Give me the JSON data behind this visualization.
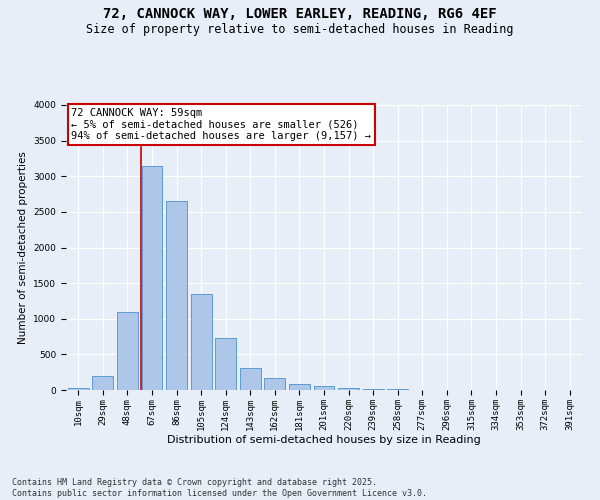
{
  "title": "72, CANNOCK WAY, LOWER EARLEY, READING, RG6 4EF",
  "subtitle": "Size of property relative to semi-detached houses in Reading",
  "xlabel": "Distribution of semi-detached houses by size in Reading",
  "ylabel": "Number of semi-detached properties",
  "categories": [
    "10sqm",
    "29sqm",
    "48sqm",
    "67sqm",
    "86sqm",
    "105sqm",
    "124sqm",
    "143sqm",
    "162sqm",
    "181sqm",
    "201sqm",
    "220sqm",
    "239sqm",
    "258sqm",
    "277sqm",
    "296sqm",
    "315sqm",
    "334sqm",
    "353sqm",
    "372sqm",
    "391sqm"
  ],
  "values": [
    30,
    190,
    1090,
    3150,
    2650,
    1350,
    730,
    310,
    165,
    85,
    50,
    35,
    20,
    10,
    5,
    3,
    2,
    1,
    1,
    0,
    0
  ],
  "bar_color": "#aec6e8",
  "bar_edge_color": "#5b9bd5",
  "bg_color": "#e8eef7",
  "grid_color": "#ffffff",
  "vline_x": 2.55,
  "vline_color": "#cc0000",
  "annotation_text": "72 CANNOCK WAY: 59sqm\n← 5% of semi-detached houses are smaller (526)\n94% of semi-detached houses are larger (9,157) →",
  "annotation_box_color": "#ffffff",
  "annotation_box_edge": "#cc0000",
  "footer": "Contains HM Land Registry data © Crown copyright and database right 2025.\nContains public sector information licensed under the Open Government Licence v3.0.",
  "ylim": [
    0,
    4000
  ],
  "title_fontsize": 10,
  "subtitle_fontsize": 8.5,
  "xlabel_fontsize": 8,
  "ylabel_fontsize": 7.5,
  "tick_fontsize": 6.5,
  "annotation_fontsize": 7.5,
  "footer_fontsize": 6
}
